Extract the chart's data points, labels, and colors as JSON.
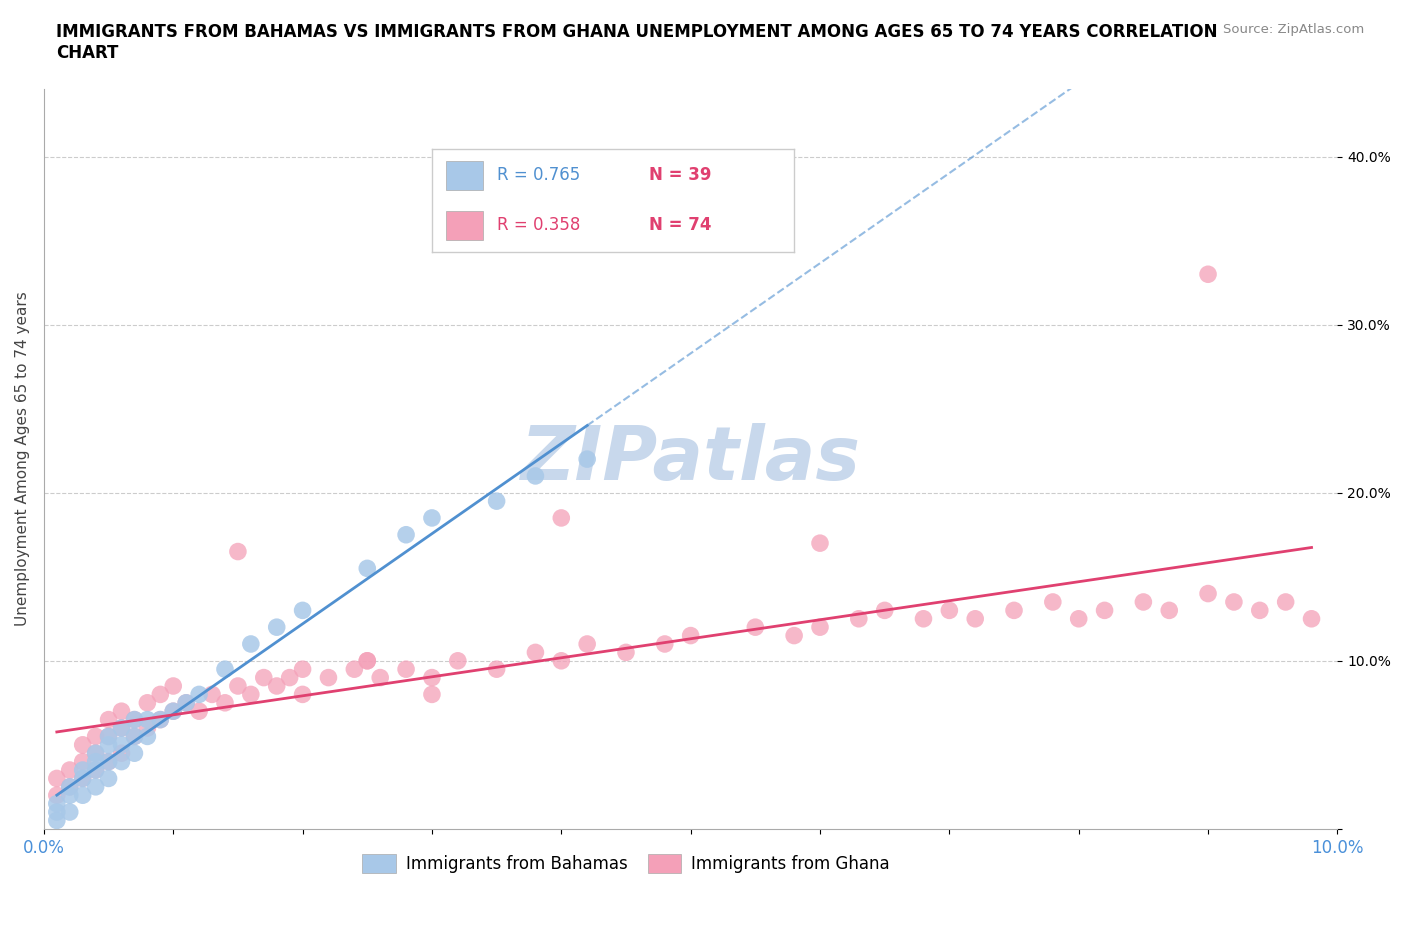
{
  "title": "IMMIGRANTS FROM BAHAMAS VS IMMIGRANTS FROM GHANA UNEMPLOYMENT AMONG AGES 65 TO 74 YEARS CORRELATION\nCHART",
  "source_text": "Source: ZipAtlas.com",
  "ylabel": "Unemployment Among Ages 65 to 74 years",
  "xlim": [
    0.0,
    0.1
  ],
  "ylim": [
    0.0,
    0.44
  ],
  "yticks": [
    0.0,
    0.1,
    0.2,
    0.3,
    0.4
  ],
  "ytick_labels": [
    "",
    "10.0%",
    "20.0%",
    "30.0%",
    "40.0%"
  ],
  "xticks": [
    0.0,
    0.01,
    0.02,
    0.03,
    0.04,
    0.05,
    0.06,
    0.07,
    0.08,
    0.09,
    0.1
  ],
  "xtick_labels": [
    "0.0%",
    "",
    "",
    "",
    "",
    "",
    "",
    "",
    "",
    "",
    "10.0%"
  ],
  "legend_r1": "R = 0.765",
  "legend_n1": "N = 39",
  "legend_r2": "R = 0.358",
  "legend_n2": "N = 74",
  "color_bahamas": "#a8c8e8",
  "color_ghana": "#f4a0b8",
  "trendline_color_bahamas": "#5090d0",
  "trendline_color_ghana": "#e04070",
  "watermark_text": "ZIPatlas",
  "watermark_color": "#c8d8ec",
  "bahamas_x": [
    0.001,
    0.001,
    0.001,
    0.002,
    0.002,
    0.002,
    0.003,
    0.003,
    0.003,
    0.004,
    0.004,
    0.004,
    0.004,
    0.005,
    0.005,
    0.005,
    0.005,
    0.006,
    0.006,
    0.006,
    0.007,
    0.007,
    0.007,
    0.008,
    0.008,
    0.009,
    0.01,
    0.011,
    0.012,
    0.014,
    0.016,
    0.018,
    0.02,
    0.025,
    0.028,
    0.03,
    0.035,
    0.038,
    0.042
  ],
  "bahamas_y": [
    0.005,
    0.01,
    0.015,
    0.01,
    0.02,
    0.025,
    0.02,
    0.03,
    0.035,
    0.025,
    0.035,
    0.04,
    0.045,
    0.03,
    0.04,
    0.05,
    0.055,
    0.04,
    0.05,
    0.06,
    0.045,
    0.055,
    0.065,
    0.055,
    0.065,
    0.065,
    0.07,
    0.075,
    0.08,
    0.095,
    0.11,
    0.12,
    0.13,
    0.155,
    0.175,
    0.185,
    0.195,
    0.21,
    0.22
  ],
  "ghana_x": [
    0.001,
    0.001,
    0.002,
    0.002,
    0.003,
    0.003,
    0.003,
    0.004,
    0.004,
    0.004,
    0.005,
    0.005,
    0.005,
    0.006,
    0.006,
    0.006,
    0.007,
    0.007,
    0.008,
    0.008,
    0.009,
    0.009,
    0.01,
    0.01,
    0.011,
    0.012,
    0.013,
    0.014,
    0.015,
    0.016,
    0.017,
    0.018,
    0.019,
    0.02,
    0.022,
    0.024,
    0.025,
    0.026,
    0.028,
    0.03,
    0.032,
    0.035,
    0.038,
    0.04,
    0.042,
    0.045,
    0.048,
    0.05,
    0.055,
    0.058,
    0.06,
    0.063,
    0.065,
    0.068,
    0.07,
    0.072,
    0.075,
    0.078,
    0.08,
    0.082,
    0.085,
    0.087,
    0.09,
    0.092,
    0.094,
    0.096,
    0.098,
    0.015,
    0.02,
    0.025,
    0.03,
    0.04,
    0.06,
    0.09
  ],
  "ghana_y": [
    0.02,
    0.03,
    0.025,
    0.035,
    0.03,
    0.04,
    0.05,
    0.035,
    0.045,
    0.055,
    0.04,
    0.055,
    0.065,
    0.045,
    0.06,
    0.07,
    0.055,
    0.065,
    0.06,
    0.075,
    0.065,
    0.08,
    0.07,
    0.085,
    0.075,
    0.07,
    0.08,
    0.075,
    0.085,
    0.08,
    0.09,
    0.085,
    0.09,
    0.095,
    0.09,
    0.095,
    0.1,
    0.09,
    0.095,
    0.09,
    0.1,
    0.095,
    0.105,
    0.1,
    0.11,
    0.105,
    0.11,
    0.115,
    0.12,
    0.115,
    0.12,
    0.125,
    0.13,
    0.125,
    0.13,
    0.125,
    0.13,
    0.135,
    0.125,
    0.13,
    0.135,
    0.13,
    0.14,
    0.135,
    0.13,
    0.135,
    0.125,
    0.165,
    0.08,
    0.1,
    0.08,
    0.185,
    0.17,
    0.33
  ]
}
